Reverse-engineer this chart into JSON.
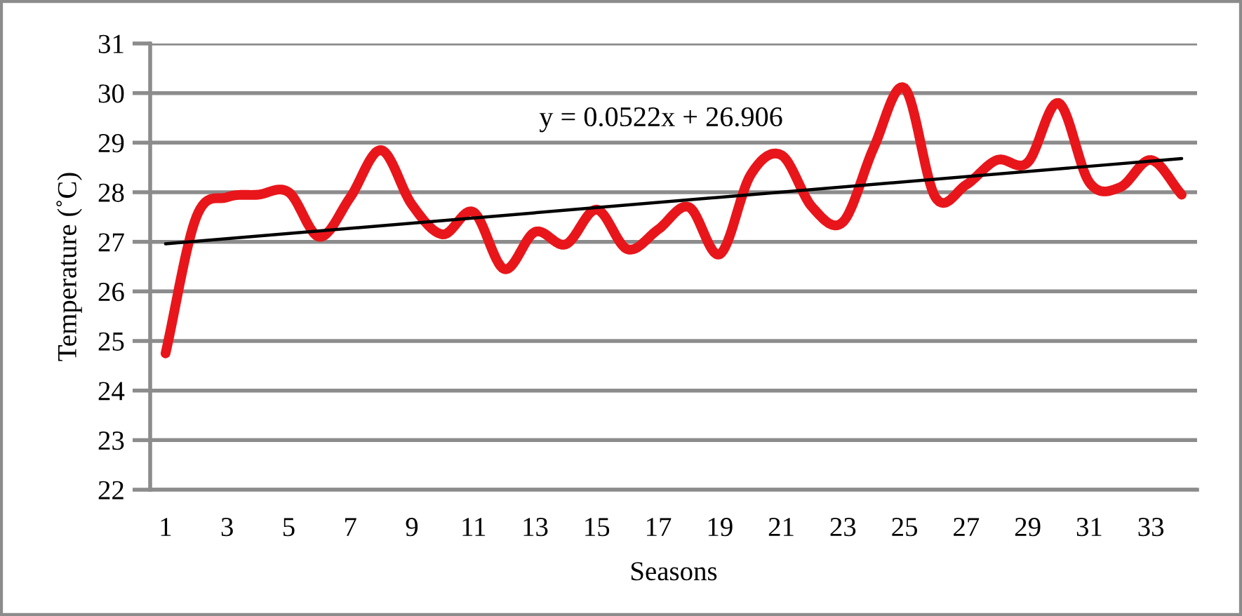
{
  "chart_data": {
    "type": "line",
    "xlabel": "Seasons",
    "ylabel": "Temperature (˚C)",
    "x": [
      1,
      2,
      3,
      4,
      5,
      6,
      7,
      8,
      9,
      10,
      11,
      12,
      13,
      14,
      15,
      16,
      17,
      18,
      19,
      20,
      21,
      22,
      23,
      24,
      25,
      26,
      27,
      28,
      29,
      30,
      31,
      32,
      33,
      34
    ],
    "xlim": [
      0.5,
      34.5
    ],
    "xticks": [
      1,
      3,
      5,
      7,
      9,
      11,
      13,
      15,
      17,
      19,
      21,
      23,
      25,
      27,
      29,
      31,
      33
    ],
    "ylim": [
      22,
      31
    ],
    "yticks": [
      22,
      23,
      24,
      25,
      26,
      27,
      28,
      29,
      30,
      31
    ],
    "grid": "y",
    "series": [
      {
        "color": "#e8161b",
        "values": [
          24.75,
          27.5,
          27.9,
          27.95,
          28.0,
          27.1,
          27.9,
          28.85,
          27.75,
          27.15,
          27.6,
          26.45,
          27.2,
          26.95,
          27.65,
          26.85,
          27.25,
          27.7,
          26.75,
          28.35,
          28.75,
          27.7,
          27.4,
          28.9,
          30.1,
          27.9,
          28.15,
          28.65,
          28.6,
          29.8,
          28.2,
          28.1,
          28.65,
          27.95
        ]
      },
      {
        "type": "line",
        "color": "#000000",
        "x": [
          1,
          34
        ],
        "values": [
          26.96,
          28.68
        ]
      }
    ],
    "annotations": [
      "y = 0.0522x + 26.906"
    ]
  }
}
